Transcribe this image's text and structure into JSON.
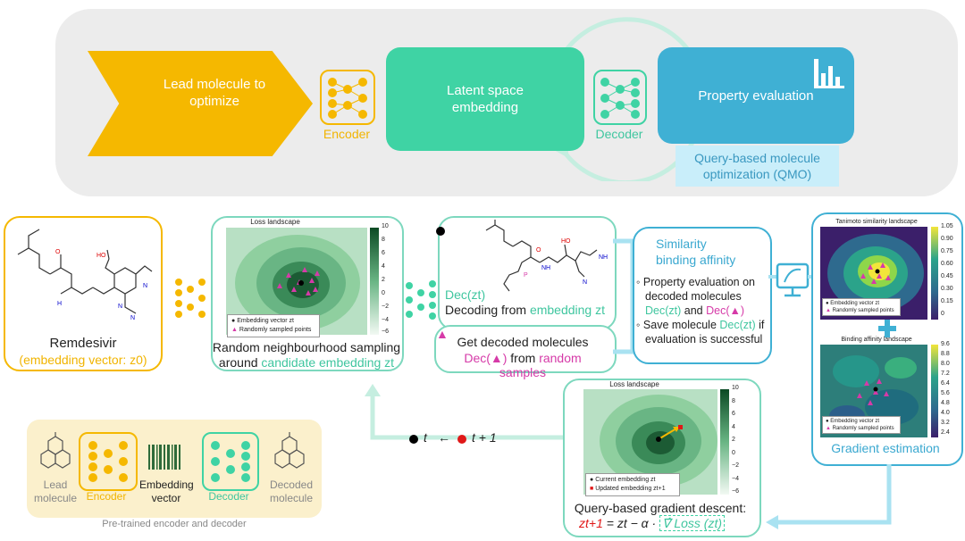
{
  "top": {
    "lead_text": "Lead molecule to optimize",
    "encoder_label": "Encoder",
    "latent_text": "Latent space embedding",
    "decoder_label": "Decoder",
    "property_text": "Property evaluation",
    "qmo_text": "Query-based molecule optimization (QMO)"
  },
  "remdesivir": {
    "name": "Remdesivir",
    "embedding": "(embedding vector: z0)"
  },
  "loss_landscape": {
    "title": "Loss landscape",
    "legend_embedding": "Embedding vector zt",
    "legend_random": "Randomly sampled points",
    "colorbar_ticks": [
      "10",
      "8",
      "6",
      "4",
      "2",
      "0",
      "−2",
      "−4",
      "−6"
    ],
    "caption_line1": "Random neighbourhood sampling",
    "caption_line2_prefix": "around ",
    "caption_line2_highlight": "candidate embedding zt"
  },
  "decoding": {
    "dec_label": "Dec(zt)",
    "line_prefix": "Decoding from ",
    "line_highlight": "embedding zt",
    "get_line1": "Get decoded molecules",
    "get_line2_mag": "Dec(▲)",
    "get_line2_mid": " from ",
    "get_line2_highlight": "random samples"
  },
  "similarity": {
    "title_line1": "Similarity",
    "title_line2": "binding affinity",
    "bullet1_line1": "Property evaluation on",
    "bullet1_line2": "decoded molecules",
    "bullet1_dec_zt": "Dec(zt)",
    "bullet1_and": " and ",
    "bullet1_dec_tri": "Dec(▲)",
    "bullet2_prefix": "Save molecule ",
    "bullet2_dec": "Dec(zt)",
    "bullet2_suffix": " if",
    "bullet2_line2": "evaluation is successful"
  },
  "tanimoto": {
    "title": "Tanimoto similarity landscape",
    "ticks": [
      "1.05",
      "0.90",
      "0.75",
      "0.60",
      "0.45",
      "0.30",
      "0.15",
      "0"
    ],
    "legend_embedding": "Embedding vector zt",
    "legend_random": "Randomly sampled points"
  },
  "binding": {
    "title": "Binding affinity landscape",
    "ticks": [
      "9.6",
      "8.8",
      "8.0",
      "7.2",
      "6.4",
      "5.6",
      "4.8",
      "4.0",
      "3.2",
      "2.4"
    ],
    "legend_embedding": "Embedding vector zt",
    "legend_random": "Randomly sampled points"
  },
  "gradient_estimation": "Gradient estimation",
  "update": {
    "t": "t",
    "arrow": "←",
    "t1": "t + 1"
  },
  "query_gd": {
    "title": "Loss landscape",
    "ticks": [
      "10",
      "8",
      "6",
      "4",
      "2",
      "0",
      "−2",
      "−4",
      "−6"
    ],
    "legend_current": "Current embedding zt",
    "legend_updated": "Updated embedding zt+1",
    "caption": "Query-based gradient descent:",
    "formula_lhs": "zt+1",
    "formula_mid": " = zt − α · ",
    "formula_grad": "∇̂ Loss (zt)"
  },
  "pretrained": {
    "lead": "Lead molecule",
    "encoder": "Encoder",
    "embedding": "Embedding vector",
    "decoder": "Decoder",
    "decoded": "Decoded molecule",
    "caption": "Pre-trained encoder and decoder"
  },
  "colors": {
    "orange": "#f5b800",
    "teal": "#3fd3a4",
    "blue": "#3fb0d4",
    "magenta": "#d63aa8"
  }
}
